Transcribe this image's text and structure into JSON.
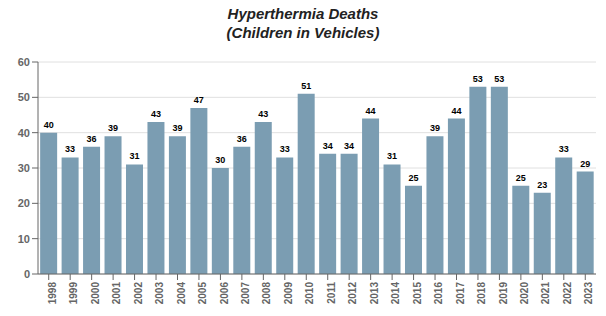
{
  "chart_data": {
    "type": "bar",
    "title": "Hyperthermia Deaths",
    "subtitle": "(Children in Vehicles)",
    "categories": [
      "1998",
      "1999",
      "2000",
      "2001",
      "2002",
      "2003",
      "2004",
      "2005",
      "2006",
      "2007",
      "2008",
      "2009",
      "2010",
      "2011",
      "2012",
      "2013",
      "2014",
      "2015",
      "2016",
      "2017",
      "2018",
      "2019",
      "2020",
      "2021",
      "2022",
      "2023"
    ],
    "values": [
      40,
      33,
      36,
      39,
      31,
      43,
      39,
      47,
      30,
      36,
      43,
      33,
      51,
      34,
      34,
      44,
      31,
      25,
      39,
      44,
      53,
      53,
      25,
      23,
      33,
      29
    ],
    "color": "#7b9db2",
    "ylim": [
      0,
      60
    ],
    "yticks": [
      0,
      10,
      20,
      30,
      40,
      50,
      60
    ],
    "grid": true,
    "data_labels": true
  }
}
